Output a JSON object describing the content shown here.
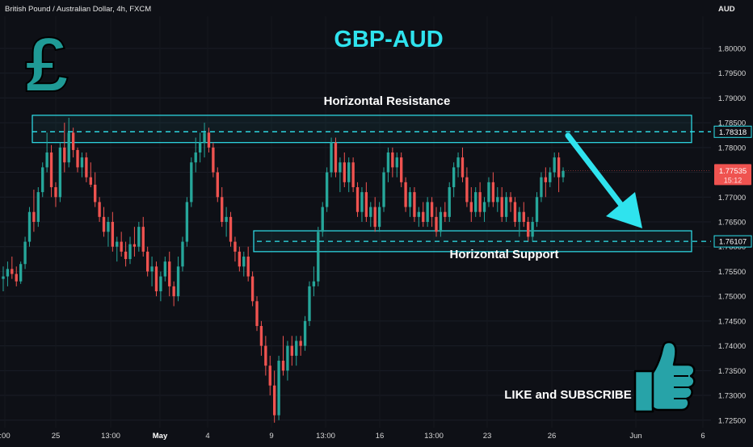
{
  "header": {
    "symbol_info": "British Pound / Australian Dollar, 4h, FXCM",
    "currency": "AUD"
  },
  "annotations": {
    "pair_title": "GBP-AUD",
    "resistance_label": "Horizontal Resistance",
    "support_label": "Horizontal Support",
    "cta": "LIKE and SUBSCRIBE",
    "pound_symbol": "£"
  },
  "colors": {
    "background": "#0e1016",
    "up": "#26a69a",
    "down": "#ef5350",
    "accent": "#2fe3ee",
    "logo": "#1f9a96"
  },
  "icons": [
    "pound-icon",
    "thumbs-up-icon",
    "arrow-down-icon"
  ],
  "chart_data": {
    "type": "candlestick",
    "y_axis_labels": [
      "1.80000",
      "1.79500",
      "1.79000",
      "1.78500",
      "1.78000",
      "1.77500",
      "1.77000",
      "1.76500",
      "1.76000",
      "1.75500",
      "1.75000",
      "1.74500",
      "1.74000",
      "1.73500",
      "1.73000",
      "1.72500"
    ],
    "ylim": [
      1.7235,
      1.8065
    ],
    "x_tick_labels": [
      ":00",
      "25",
      "13:00",
      "May",
      "4",
      "13:00",
      "9",
      "13:00",
      "16",
      "13:00",
      "23",
      "26",
      "Jun",
      "6"
    ],
    "resistance_zone": [
      1.781,
      1.7865
    ],
    "support_zone": [
      1.759,
      1.7632
    ],
    "resistance_level": {
      "label": "1.78318",
      "value": 1.78318
    },
    "support_level": {
      "label": "1.76107",
      "value": 1.76107
    },
    "current_price": {
      "label": "1.77535",
      "value": 1.77535,
      "countdown": "15:12"
    },
    "candles": [
      [
        1.7535,
        1.756,
        1.751,
        1.754
      ],
      [
        1.754,
        1.757,
        1.752,
        1.7555
      ],
      [
        1.7555,
        1.758,
        1.7535,
        1.7545
      ],
      [
        1.7545,
        1.756,
        1.752,
        1.753
      ],
      [
        1.753,
        1.757,
        1.7525,
        1.7565
      ],
      [
        1.7565,
        1.762,
        1.7555,
        1.761
      ],
      [
        1.761,
        1.768,
        1.76,
        1.767
      ],
      [
        1.767,
        1.7715,
        1.763,
        1.765
      ],
      [
        1.765,
        1.772,
        1.764,
        1.771
      ],
      [
        1.771,
        1.777,
        1.77,
        1.776
      ],
      [
        1.776,
        1.783,
        1.775,
        1.779
      ],
      [
        1.779,
        1.7805,
        1.77,
        1.772
      ],
      [
        1.772,
        1.773,
        1.768,
        1.77
      ],
      [
        1.77,
        1.781,
        1.769,
        1.78
      ],
      [
        1.78,
        1.785,
        1.775,
        1.777
      ],
      [
        1.777,
        1.786,
        1.776,
        1.783
      ],
      [
        1.783,
        1.784,
        1.778,
        1.7795
      ],
      [
        1.7795,
        1.78,
        1.775,
        1.776
      ],
      [
        1.776,
        1.779,
        1.774,
        1.778
      ],
      [
        1.778,
        1.779,
        1.773,
        1.774
      ],
      [
        1.774,
        1.777,
        1.772,
        1.7725
      ],
      [
        1.7725,
        1.775,
        1.768,
        1.769
      ],
      [
        1.769,
        1.77,
        1.765,
        1.766
      ],
      [
        1.766,
        1.768,
        1.762,
        1.763
      ],
      [
        1.763,
        1.766,
        1.76,
        1.765
      ],
      [
        1.765,
        1.767,
        1.759,
        1.76
      ],
      [
        1.76,
        1.762,
        1.757,
        1.761
      ],
      [
        1.761,
        1.763,
        1.758,
        1.759
      ],
      [
        1.759,
        1.761,
        1.756,
        1.7575
      ],
      [
        1.7575,
        1.762,
        1.7565,
        1.7605
      ],
      [
        1.7605,
        1.764,
        1.758,
        1.76
      ],
      [
        1.76,
        1.765,
        1.759,
        1.764
      ],
      [
        1.764,
        1.766,
        1.758,
        1.759
      ],
      [
        1.759,
        1.76,
        1.754,
        1.755
      ],
      [
        1.755,
        1.758,
        1.752,
        1.756
      ],
      [
        1.756,
        1.757,
        1.75,
        1.751
      ],
      [
        1.751,
        1.755,
        1.749,
        1.754
      ],
      [
        1.754,
        1.758,
        1.753,
        1.757
      ],
      [
        1.757,
        1.759,
        1.75,
        1.752
      ],
      [
        1.752,
        1.753,
        1.748,
        1.75
      ],
      [
        1.75,
        1.758,
        1.749,
        1.756
      ],
      [
        1.756,
        1.762,
        1.755,
        1.761
      ],
      [
        1.761,
        1.77,
        1.76,
        1.769
      ],
      [
        1.769,
        1.778,
        1.768,
        1.777
      ],
      [
        1.777,
        1.782,
        1.775,
        1.779
      ],
      [
        1.779,
        1.783,
        1.777,
        1.781
      ],
      [
        1.781,
        1.785,
        1.778,
        1.783
      ],
      [
        1.783,
        1.784,
        1.779,
        1.78
      ],
      [
        1.78,
        1.781,
        1.774,
        1.775
      ],
      [
        1.775,
        1.776,
        1.769,
        1.77
      ],
      [
        1.77,
        1.772,
        1.764,
        1.765
      ],
      [
        1.765,
        1.768,
        1.762,
        1.766
      ],
      [
        1.766,
        1.767,
        1.76,
        1.761
      ],
      [
        1.761,
        1.762,
        1.757,
        1.759
      ],
      [
        1.759,
        1.76,
        1.755,
        1.756
      ],
      [
        1.756,
        1.759,
        1.754,
        1.758
      ],
      [
        1.758,
        1.76,
        1.753,
        1.754
      ],
      [
        1.754,
        1.755,
        1.748,
        1.749
      ],
      [
        1.749,
        1.75,
        1.743,
        1.744
      ],
      [
        1.744,
        1.745,
        1.738,
        1.74
      ],
      [
        1.74,
        1.742,
        1.734,
        1.736
      ],
      [
        1.736,
        1.738,
        1.73,
        1.732
      ],
      [
        1.732,
        1.735,
        1.7245,
        1.726
      ],
      [
        1.726,
        1.738,
        1.725,
        1.737
      ],
      [
        1.737,
        1.742,
        1.734,
        1.735
      ],
      [
        1.735,
        1.741,
        1.733,
        1.74
      ],
      [
        1.74,
        1.742,
        1.736,
        1.738
      ],
      [
        1.738,
        1.742,
        1.736,
        1.741
      ],
      [
        1.741,
        1.742,
        1.738,
        1.74
      ],
      [
        1.74,
        1.746,
        1.739,
        1.745
      ],
      [
        1.745,
        1.753,
        1.744,
        1.752
      ],
      [
        1.752,
        1.756,
        1.75,
        1.753
      ],
      [
        1.753,
        1.764,
        1.752,
        1.763
      ],
      [
        1.763,
        1.769,
        1.762,
        1.768
      ],
      [
        1.768,
        1.776,
        1.767,
        1.775
      ],
      [
        1.775,
        1.782,
        1.774,
        1.781
      ],
      [
        1.781,
        1.782,
        1.774,
        1.775
      ],
      [
        1.775,
        1.778,
        1.771,
        1.777
      ],
      [
        1.777,
        1.779,
        1.772,
        1.773
      ],
      [
        1.773,
        1.778,
        1.771,
        1.777
      ],
      [
        1.777,
        1.778,
        1.771,
        1.772
      ],
      [
        1.772,
        1.773,
        1.766,
        1.767
      ],
      [
        1.767,
        1.772,
        1.765,
        1.771
      ],
      [
        1.771,
        1.773,
        1.765,
        1.766
      ],
      [
        1.766,
        1.769,
        1.764,
        1.768
      ],
      [
        1.768,
        1.77,
        1.763,
        1.764
      ],
      [
        1.764,
        1.769,
        1.763,
        1.768
      ],
      [
        1.768,
        1.776,
        1.767,
        1.775
      ],
      [
        1.775,
        1.78,
        1.773,
        1.779
      ],
      [
        1.779,
        1.78,
        1.774,
        1.776
      ],
      [
        1.776,
        1.779,
        1.774,
        1.778
      ],
      [
        1.778,
        1.779,
        1.772,
        1.773
      ],
      [
        1.773,
        1.774,
        1.767,
        1.768
      ],
      [
        1.768,
        1.772,
        1.766,
        1.771
      ],
      [
        1.771,
        1.772,
        1.765,
        1.766
      ],
      [
        1.766,
        1.768,
        1.764,
        1.767
      ],
      [
        1.767,
        1.769,
        1.764,
        1.765
      ],
      [
        1.765,
        1.77,
        1.764,
        1.769
      ],
      [
        1.769,
        1.77,
        1.764,
        1.766
      ],
      [
        1.766,
        1.768,
        1.762,
        1.763
      ],
      [
        1.763,
        1.768,
        1.762,
        1.767
      ],
      [
        1.767,
        1.769,
        1.765,
        1.766
      ],
      [
        1.766,
        1.773,
        1.765,
        1.772
      ],
      [
        1.772,
        1.777,
        1.77,
        1.776
      ],
      [
        1.776,
        1.779,
        1.774,
        1.778
      ],
      [
        1.778,
        1.78,
        1.773,
        1.774
      ],
      [
        1.774,
        1.776,
        1.768,
        1.769
      ],
      [
        1.769,
        1.772,
        1.765,
        1.767
      ],
      [
        1.767,
        1.772,
        1.766,
        1.771
      ],
      [
        1.771,
        1.773,
        1.766,
        1.767
      ],
      [
        1.767,
        1.77,
        1.765,
        1.769
      ],
      [
        1.769,
        1.774,
        1.768,
        1.773
      ],
      [
        1.773,
        1.775,
        1.768,
        1.769
      ],
      [
        1.769,
        1.772,
        1.767,
        1.77
      ],
      [
        1.77,
        1.772,
        1.765,
        1.766
      ],
      [
        1.766,
        1.771,
        1.765,
        1.77
      ],
      [
        1.77,
        1.771,
        1.767,
        1.769
      ],
      [
        1.769,
        1.77,
        1.764,
        1.765
      ],
      [
        1.765,
        1.768,
        1.762,
        1.767
      ],
      [
        1.767,
        1.769,
        1.764,
        1.765
      ],
      [
        1.765,
        1.766,
        1.761,
        1.762
      ],
      [
        1.762,
        1.766,
        1.761,
        1.765
      ],
      [
        1.765,
        1.771,
        1.764,
        1.77
      ],
      [
        1.77,
        1.775,
        1.769,
        1.774
      ],
      [
        1.774,
        1.776,
        1.77,
        1.773
      ],
      [
        1.773,
        1.776,
        1.772,
        1.775
      ],
      [
        1.775,
        1.779,
        1.774,
        1.778
      ],
      [
        1.778,
        1.779,
        1.771,
        1.774
      ],
      [
        1.774,
        1.776,
        1.773,
        1.7753
      ]
    ]
  }
}
